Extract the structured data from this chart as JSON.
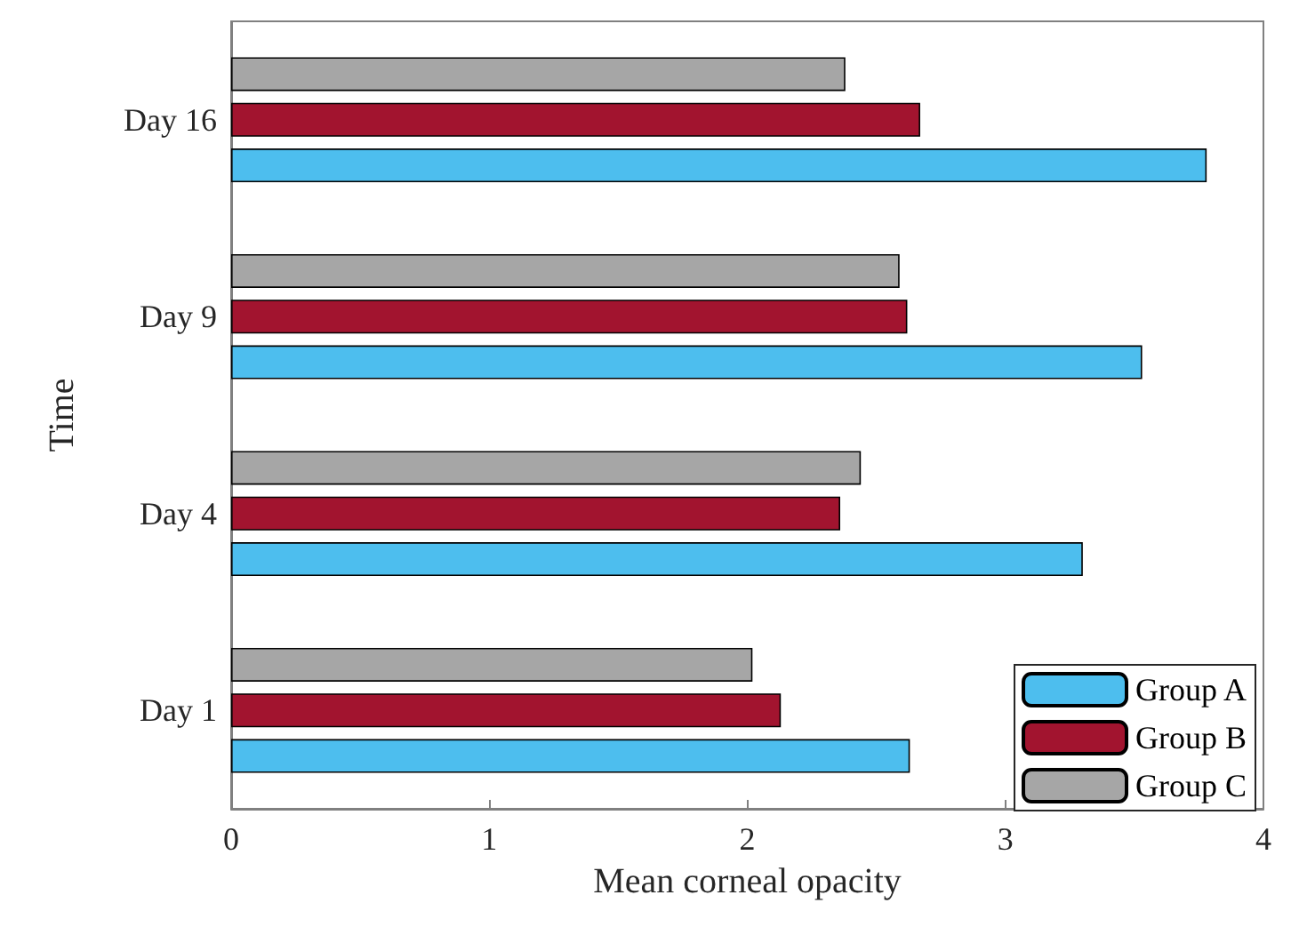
{
  "chart_data": {
    "type": "bar",
    "orientation": "horizontal",
    "xlabel": "Mean corneal opacity",
    "ylabel": "Time",
    "categories": [
      "Day 16",
      "Day 9",
      "Day 4",
      "Day 1"
    ],
    "series": [
      {
        "name": "Group A",
        "color": "#4dbeee",
        "values": [
          3.78,
          3.53,
          3.3,
          2.63
        ]
      },
      {
        "name": "Group B",
        "color": "#a2142f",
        "values": [
          2.67,
          2.62,
          2.36,
          2.13
        ]
      },
      {
        "name": "Group C",
        "color": "#a6a6a6",
        "values": [
          2.38,
          2.59,
          2.44,
          2.02
        ]
      }
    ],
    "xlim": [
      0,
      4
    ],
    "xticks": [
      0,
      1,
      2,
      3,
      4
    ],
    "grid": false,
    "legend": "bottom right"
  }
}
